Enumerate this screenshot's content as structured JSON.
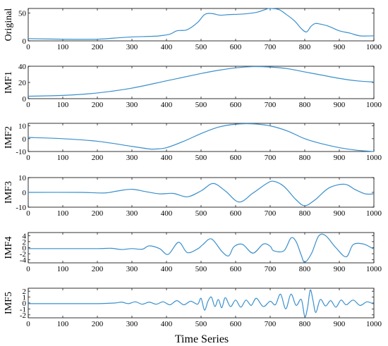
{
  "chart_data": [
    {
      "type": "line",
      "ylabel": "Original",
      "xlim": [
        0,
        1000
      ],
      "ylim": [
        0,
        58
      ],
      "xticks": [
        0,
        100,
        200,
        300,
        400,
        500,
        600,
        700,
        800,
        900,
        1000
      ],
      "yticks": [
        0,
        50
      ],
      "series_color": "#3a8fcc",
      "x": [
        0,
        100,
        200,
        250,
        300,
        350,
        380,
        410,
        430,
        460,
        490,
        510,
        530,
        555,
        580,
        620,
        660,
        690,
        700,
        725,
        745,
        770,
        790,
        805,
        818,
        830,
        845,
        870,
        900,
        930,
        960,
        1000
      ],
      "y": [
        4,
        3,
        3,
        5,
        7,
        8,
        9,
        12,
        18,
        20,
        33,
        47,
        49,
        46,
        47,
        48,
        51,
        57,
        58,
        56,
        48,
        36,
        22,
        16,
        26,
        31,
        30,
        26,
        18,
        14,
        9,
        9
      ]
    },
    {
      "type": "line",
      "ylabel": "IMF1",
      "xlim": [
        0,
        1000
      ],
      "ylim": [
        0,
        40
      ],
      "xticks": [
        0,
        100,
        200,
        300,
        400,
        500,
        600,
        700,
        800,
        900,
        1000
      ],
      "yticks": [
        0,
        20,
        40
      ],
      "series_color": "#3a8fcc",
      "x": [
        0,
        100,
        200,
        300,
        400,
        500,
        550,
        600,
        650,
        700,
        750,
        800,
        850,
        900,
        950,
        1000
      ],
      "y": [
        3,
        4,
        7,
        13,
        22,
        31,
        35,
        38,
        39.5,
        39,
        37,
        33,
        29,
        25,
        22,
        20.5
      ]
    },
    {
      "type": "line",
      "ylabel": "IMF2",
      "xlim": [
        0,
        1000
      ],
      "ylim": [
        -10,
        12
      ],
      "xticks": [
        0,
        100,
        200,
        300,
        400,
        500,
        600,
        700,
        800,
        900,
        1000
      ],
      "yticks": [
        -10,
        0,
        10
      ],
      "series_color": "#3a8fcc",
      "x": [
        0,
        100,
        200,
        300,
        350,
        370,
        400,
        450,
        500,
        550,
        600,
        650,
        700,
        750,
        800,
        850,
        900,
        950,
        1000
      ],
      "y": [
        1,
        0,
        -2,
        -6,
        -8,
        -8,
        -7,
        -2,
        4,
        9,
        11.3,
        11.6,
        10,
        6,
        0,
        -4,
        -7,
        -9,
        -10
      ]
    },
    {
      "type": "line",
      "ylabel": "IMF3",
      "xlim": [
        0,
        1000
      ],
      "ylim": [
        -10,
        10
      ],
      "xticks": [
        0,
        100,
        200,
        300,
        400,
        500,
        600,
        700,
        800,
        900,
        1000
      ],
      "yticks": [
        -10,
        0,
        10
      ],
      "series_color": "#3a8fcc",
      "x": [
        0,
        150,
        220,
        260,
        300,
        340,
        380,
        420,
        460,
        500,
        535,
        570,
        610,
        650,
        690,
        710,
        740,
        775,
        800,
        830,
        870,
        915,
        945,
        975,
        1000
      ],
      "y": [
        0,
        0,
        -0.4,
        1,
        2.1,
        0.5,
        -1,
        -0.7,
        -3,
        1,
        6,
        1,
        -6.5,
        -0.5,
        6,
        7.5,
        4,
        -5,
        -9,
        -5,
        3,
        5.5,
        2,
        -1,
        -1
      ]
    },
    {
      "type": "line",
      "ylabel": "IMF4",
      "xlim": [
        0,
        1000
      ],
      "ylim": [
        -5,
        5
      ],
      "xticks": [
        0,
        100,
        200,
        300,
        400,
        500,
        600,
        700,
        800,
        900,
        1000
      ],
      "yticks": [
        -4,
        -2,
        0,
        2,
        4
      ],
      "series_color": "#3a8fcc",
      "x": [
        0,
        100,
        200,
        240,
        270,
        300,
        330,
        350,
        380,
        405,
        435,
        460,
        490,
        505,
        530,
        560,
        580,
        595,
        620,
        650,
        680,
        700,
        710,
        740,
        760,
        775,
        790,
        800,
        820,
        840,
        860,
        890,
        920,
        940,
        970,
        1000
      ],
      "y": [
        -0.3,
        -0.3,
        -0.3,
        -0.2,
        -0.6,
        -0.3,
        -0.5,
        0.6,
        -0.3,
        -2.2,
        1.8,
        -1.6,
        -0.4,
        1,
        2.9,
        -1.2,
        -2.7,
        0.3,
        1.1,
        -1.8,
        1.2,
        0.5,
        -1,
        -1,
        3.2,
        2,
        -2.5,
        -4.8,
        -1.8,
        3.8,
        4,
        0,
        -3,
        1,
        1.2,
        -0.5
      ]
    },
    {
      "type": "line",
      "ylabel": "IMF5",
      "xlim": [
        0,
        1000
      ],
      "ylim": [
        -2.5,
        2.5
      ],
      "xticks": [
        0,
        100,
        200,
        300,
        400,
        500,
        600,
        700,
        800,
        900,
        1000
      ],
      "yticks": [
        -2,
        -1,
        0,
        1,
        2
      ],
      "series_color": "#3a8fcc",
      "x": [
        0,
        100,
        200,
        250,
        270,
        290,
        310,
        330,
        350,
        370,
        390,
        410,
        430,
        450,
        470,
        490,
        500,
        510,
        520,
        530,
        540,
        550,
        560,
        570,
        585,
        600,
        615,
        630,
        645,
        660,
        680,
        700,
        715,
        730,
        745,
        760,
        775,
        790,
        800,
        808,
        816,
        824,
        832,
        845,
        860,
        875,
        890,
        905,
        920,
        940,
        960,
        980,
        1000
      ],
      "y": [
        -0.1,
        -0.1,
        -0.1,
        0,
        0.15,
        -0.1,
        0.2,
        -0.2,
        0.15,
        -0.2,
        0.2,
        -0.3,
        0.4,
        -0.3,
        0.3,
        -0.2,
        0.8,
        -1.2,
        0.3,
        1,
        -0.6,
        0.6,
        -0.8,
        0.9,
        -0.6,
        0.5,
        -0.7,
        0.5,
        -0.4,
        0.8,
        -0.6,
        0.3,
        -0.3,
        1.5,
        -1,
        1.5,
        -0.4,
        0.6,
        -2.3,
        -0.8,
        2.2,
        0.4,
        -1.6,
        0.6,
        -0.5,
        0.4,
        -0.7,
        0.5,
        -0.3,
        0.5,
        -0.4,
        0.2,
        -0.2
      ]
    }
  ],
  "xtitle": "Time Series"
}
